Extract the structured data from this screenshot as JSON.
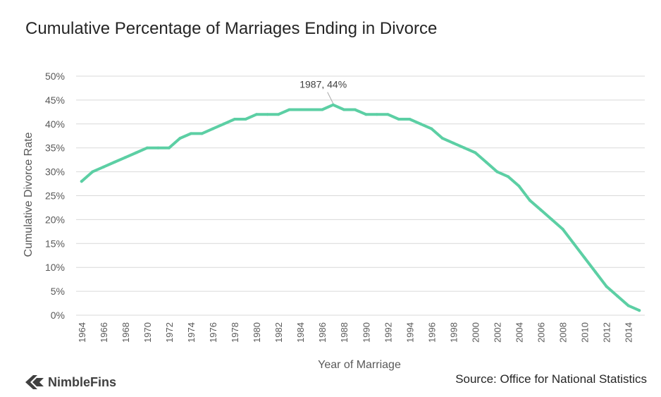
{
  "header": {
    "title": "Cumulative Percentage of Marriages Ending in Divorce"
  },
  "footer": {
    "source": "Source: Office for National Statistics",
    "brand": "NimbleFins"
  },
  "colors": {
    "line": "#5ccfa4",
    "grid": "#d9d9d9",
    "text": "#595959"
  },
  "chart_data": {
    "type": "line",
    "title": "Cumulative Percentage of Marriages Ending in Divorce",
    "xlabel": "Year of Marriage",
    "ylabel": "Cumulative Divorce Rate",
    "ylim": [
      0,
      50
    ],
    "yticks": [
      0,
      5,
      10,
      15,
      20,
      25,
      30,
      35,
      40,
      45,
      50
    ],
    "ytick_labels": [
      "0%",
      "5%",
      "10%",
      "15%",
      "20%",
      "25%",
      "30%",
      "35%",
      "40%",
      "45%",
      "50%"
    ],
    "xticks": [
      1964,
      1966,
      1968,
      1970,
      1972,
      1974,
      1976,
      1978,
      1980,
      1982,
      1984,
      1986,
      1988,
      1990,
      1992,
      1994,
      1996,
      1998,
      2000,
      2002,
      2004,
      2006,
      2008,
      2010,
      2012,
      2014
    ],
    "grid": true,
    "series": [
      {
        "x": [
          1964,
          1965,
          1966,
          1967,
          1968,
          1969,
          1970,
          1971,
          1972,
          1973,
          1974,
          1975,
          1976,
          1977,
          1978,
          1979,
          1980,
          1981,
          1982,
          1983,
          1984,
          1985,
          1986,
          1987,
          1988,
          1989,
          1990,
          1991,
          1992,
          1993,
          1994,
          1995,
          1996,
          1997,
          1998,
          1999,
          2000,
          2001,
          2002,
          2003,
          2004,
          2005,
          2006,
          2007,
          2008,
          2009,
          2010,
          2011,
          2012,
          2013,
          2014,
          2015
        ],
        "values": [
          28,
          30,
          31,
          32,
          33,
          34,
          35,
          35,
          35,
          37,
          38,
          38,
          39,
          40,
          41,
          41,
          42,
          42,
          42,
          43,
          43,
          43,
          43,
          44,
          43,
          43,
          42,
          42,
          42,
          41,
          41,
          40,
          39,
          37,
          36,
          35,
          34,
          32,
          30,
          29,
          27,
          24,
          22,
          20,
          18,
          15,
          12,
          9,
          6,
          4,
          2,
          1
        ]
      }
    ],
    "annotations": [
      {
        "x": 1987,
        "y": 44,
        "text": "1987, 44%"
      }
    ]
  }
}
